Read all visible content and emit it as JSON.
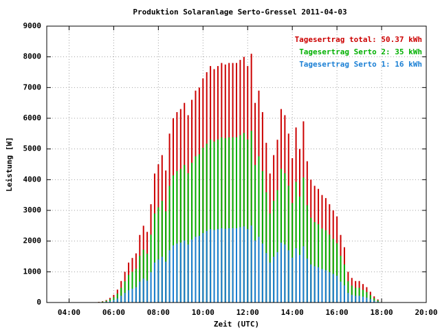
{
  "chart_data": {
    "type": "bar",
    "overlay": true,
    "title": "Produktion Solaranlage Serto-Gressel 2011-04-03",
    "x_label": "Zeit (UTC)",
    "y_label": "Leistung [W]",
    "x": [
      310,
      320,
      330,
      340,
      350,
      360,
      370,
      380,
      390,
      400,
      410,
      420,
      430,
      440,
      450,
      460,
      470,
      480,
      490,
      500,
      510,
      520,
      530,
      540,
      550,
      560,
      570,
      580,
      590,
      600,
      610,
      620,
      630,
      640,
      650,
      660,
      670,
      680,
      690,
      700,
      710,
      720,
      730,
      740,
      750,
      760,
      770,
      780,
      790,
      800,
      810,
      820,
      830,
      840,
      850,
      860,
      870,
      880,
      890,
      900,
      910,
      920,
      930,
      940,
      950,
      960,
      970,
      980,
      990,
      1000,
      1010,
      1020,
      1030,
      1040,
      1050,
      1060,
      1070
    ],
    "series": [
      {
        "name": "Tagesertrag total: 50.37 kWh",
        "color": "#cc0000",
        "values": [
          10,
          20,
          40,
          80,
          150,
          250,
          420,
          700,
          1000,
          1300,
          1450,
          1600,
          2200,
          2500,
          2300,
          3200,
          4200,
          4500,
          4800,
          4300,
          5500,
          6000,
          6200,
          6300,
          6500,
          6100,
          6600,
          6900,
          7000,
          7300,
          7500,
          7700,
          7600,
          7700,
          7800,
          7750,
          7800,
          7800,
          7800,
          7900,
          8000,
          7700,
          8100,
          6500,
          6900,
          6200,
          5200,
          4200,
          4800,
          5300,
          6300,
          6100,
          5500,
          4700,
          5700,
          5000,
          5900,
          4600,
          4000,
          3800,
          3700,
          3500,
          3400,
          3200,
          3000,
          2800,
          2200,
          1800,
          1000,
          800,
          700,
          700,
          600,
          500,
          350,
          200,
          100
        ]
      },
      {
        "name": "Tagesertrag Serto 2: 35 kWh",
        "color": "#00b000",
        "values": [
          7,
          14,
          28,
          55,
          105,
          170,
          290,
          480,
          690,
          900,
          1000,
          1100,
          1520,
          1720,
          1590,
          2210,
          2900,
          3100,
          3310,
          2970,
          3800,
          4140,
          4280,
          4350,
          4480,
          4210,
          4550,
          4760,
          4830,
          5040,
          5170,
          5310,
          5240,
          5310,
          5380,
          5350,
          5380,
          5380,
          5380,
          5450,
          5520,
          5310,
          5590,
          4480,
          4760,
          4280,
          3590,
          2900,
          3310,
          3660,
          4350,
          4210,
          3800,
          3240,
          3930,
          3450,
          4070,
          3170,
          2760,
          2620,
          2550,
          2410,
          2350,
          2210,
          2070,
          1930,
          1520,
          1240,
          690,
          550,
          480,
          480,
          410,
          340,
          240,
          140,
          70
        ]
      },
      {
        "name": "Tagesertrag Serto 1: 16 kWh",
        "color": "#1a7fd4",
        "values": [
          3,
          6,
          12,
          25,
          45,
          80,
          130,
          220,
          310,
          400,
          450,
          500,
          680,
          780,
          710,
          990,
          1300,
          1400,
          1490,
          1330,
          1700,
          1860,
          1920,
          1950,
          2020,
          1890,
          2050,
          2140,
          2170,
          2260,
          2330,
          2390,
          2360,
          2390,
          2420,
          2400,
          2420,
          2420,
          2420,
          2450,
          2480,
          2390,
          2510,
          2020,
          2140,
          1920,
          1610,
          1300,
          1490,
          1640,
          1950,
          1890,
          1700,
          1460,
          1770,
          1550,
          1830,
          1430,
          1240,
          1180,
          1150,
          1090,
          1050,
          990,
          930,
          870,
          680,
          560,
          310,
          250,
          220,
          220,
          190,
          160,
          110,
          60,
          30
        ]
      }
    ],
    "xlim": [
      180,
      1200
    ],
    "xticks": [
      {
        "value": 240,
        "label": "04:00"
      },
      {
        "value": 360,
        "label": "06:00"
      },
      {
        "value": 480,
        "label": "08:00"
      },
      {
        "value": 600,
        "label": "10:00"
      },
      {
        "value": 720,
        "label": "12:00"
      },
      {
        "value": 840,
        "label": "14:00"
      },
      {
        "value": 960,
        "label": "16:00"
      },
      {
        "value": 1080,
        "label": "18:00"
      },
      {
        "value": 1200,
        "label": "20:00"
      }
    ],
    "ylim": [
      0,
      9000
    ],
    "yticks": [
      0,
      1000,
      2000,
      3000,
      4000,
      5000,
      6000,
      7000,
      8000,
      9000
    ],
    "grid": true,
    "legend": "top-right"
  }
}
